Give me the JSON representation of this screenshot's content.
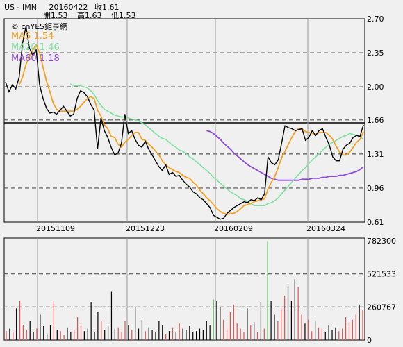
{
  "header": {
    "symbol": "US - IMN",
    "date": "20160422",
    "close": "收1.61",
    "open": "開1.53",
    "high": "高1.63",
    "low": "低1.53"
  },
  "chart_data": [
    {
      "type": "line",
      "watermark": "© cnYES鉅亨網",
      "legend": [
        "MA5 1.54",
        "MA20 1.46",
        "MA60 1.18"
      ],
      "ylim": [
        0.61,
        2.7
      ],
      "yticks": [
        "2.70",
        "2.35",
        "2.00",
        "1.66",
        "1.31",
        "0.96",
        "0.61"
      ],
      "xticks": [
        "20151109",
        "20151223",
        "20160209",
        "20160324"
      ],
      "reference_line": 1.63,
      "colors": {
        "price": "#000000",
        "ma5": "#f5a020",
        "ma20": "#7ee0a0",
        "ma60": "#9048e0"
      },
      "series": [
        {
          "name": "",
          "values": [
            2.05,
            1.95,
            2.02,
            1.98,
            2.1,
            2.45,
            2.62,
            2.4,
            2.32,
            2.38,
            2.02,
            1.88,
            1.78,
            1.73,
            1.74,
            1.72,
            1.76,
            1.8,
            1.75,
            1.7,
            1.72,
            1.88,
            1.96,
            1.94,
            1.9,
            1.82,
            1.76,
            1.36,
            1.68,
            1.55,
            1.48,
            1.38,
            1.3,
            1.32,
            1.42,
            1.72,
            1.52,
            1.55,
            1.46,
            1.4,
            1.38,
            1.44,
            1.36,
            1.3,
            1.24,
            1.18,
            1.14,
            1.2,
            1.1,
            1.12,
            1.08,
            1.09,
            1.04,
            1.0,
            0.97,
            0.92,
            0.9,
            0.86,
            0.84,
            0.8,
            0.76,
            0.68,
            0.66,
            0.64,
            0.65,
            0.7,
            0.73,
            0.76,
            0.78,
            0.8,
            0.82,
            0.81,
            0.84,
            0.83,
            0.86,
            0.84,
            0.9,
            1.28,
            1.22,
            1.2,
            1.25,
            1.42,
            1.6,
            1.58,
            1.57,
            1.55,
            1.56,
            1.57,
            1.45,
            1.48,
            1.55,
            1.5,
            1.55,
            1.57,
            1.48,
            1.4,
            1.28,
            1.24,
            1.24,
            1.36,
            1.4,
            1.42,
            1.48,
            1.5,
            1.49,
            1.61
          ]
        },
        {
          "name": "MA5",
          "values": [
            null,
            null,
            null,
            null,
            2.02,
            2.1,
            2.23,
            2.31,
            2.38,
            2.43,
            2.35,
            2.2,
            2.06,
            1.95,
            1.83,
            1.77,
            1.75,
            1.75,
            1.75,
            1.75,
            1.75,
            1.77,
            1.8,
            1.84,
            1.88,
            1.9,
            1.88,
            1.76,
            1.7,
            1.61,
            1.57,
            1.49,
            1.48,
            1.41,
            1.38,
            1.43,
            1.46,
            1.5,
            1.53,
            1.53,
            1.46,
            1.45,
            1.41,
            1.38,
            1.34,
            1.3,
            1.24,
            1.2,
            1.17,
            1.15,
            1.13,
            1.12,
            1.09,
            1.07,
            1.06,
            1.02,
            0.99,
            0.94,
            0.9,
            0.86,
            0.83,
            0.79,
            0.75,
            0.72,
            0.7,
            0.69,
            0.7,
            0.7,
            0.72,
            0.75,
            0.78,
            0.79,
            0.8,
            0.82,
            0.83,
            0.84,
            0.85,
            0.95,
            1.02,
            1.08,
            1.17,
            1.27,
            1.34,
            1.41,
            1.48,
            1.54,
            1.57,
            1.57,
            1.54,
            1.53,
            1.52,
            1.51,
            1.53,
            1.53,
            1.53,
            1.5,
            1.46,
            1.39,
            1.33,
            1.3,
            1.3,
            1.33,
            1.38,
            1.43,
            1.46,
            1.54
          ]
        },
        {
          "name": "MA20",
          "values": [
            null,
            null,
            null,
            null,
            null,
            null,
            null,
            null,
            null,
            null,
            null,
            null,
            null,
            null,
            null,
            null,
            null,
            null,
            null,
            2.03,
            2.01,
            2.01,
            2.01,
            2.0,
            1.99,
            1.96,
            1.92,
            1.86,
            1.81,
            1.77,
            1.75,
            1.73,
            1.71,
            1.7,
            1.69,
            1.69,
            1.68,
            1.67,
            1.66,
            1.65,
            1.63,
            1.61,
            1.58,
            1.55,
            1.52,
            1.49,
            1.47,
            1.46,
            1.43,
            1.4,
            1.38,
            1.35,
            1.34,
            1.31,
            1.28,
            1.26,
            1.23,
            1.2,
            1.17,
            1.14,
            1.11,
            1.07,
            1.04,
            1.01,
            0.98,
            0.95,
            0.92,
            0.9,
            0.88,
            0.85,
            0.84,
            0.82,
            0.8,
            0.78,
            0.78,
            0.78,
            0.78,
            0.8,
            0.81,
            0.83,
            0.86,
            0.9,
            0.94,
            0.98,
            1.02,
            1.06,
            1.1,
            1.14,
            1.17,
            1.21,
            1.25,
            1.28,
            1.31,
            1.35,
            1.38,
            1.41,
            1.43,
            1.45,
            1.47,
            1.49,
            1.5,
            1.52,
            1.51,
            1.5,
            1.49,
            1.46
          ]
        },
        {
          "name": "MA60",
          "values": [
            null,
            null,
            null,
            null,
            null,
            null,
            null,
            null,
            null,
            null,
            null,
            null,
            null,
            null,
            null,
            null,
            null,
            null,
            null,
            null,
            null,
            null,
            null,
            null,
            null,
            null,
            null,
            null,
            null,
            null,
            null,
            null,
            null,
            null,
            null,
            null,
            null,
            null,
            null,
            null,
            null,
            null,
            null,
            null,
            null,
            null,
            null,
            null,
            null,
            null,
            null,
            null,
            null,
            null,
            null,
            null,
            null,
            null,
            null,
            1.55,
            1.54,
            1.52,
            1.49,
            1.46,
            1.42,
            1.39,
            1.36,
            1.32,
            1.29,
            1.26,
            1.23,
            1.2,
            1.18,
            1.16,
            1.14,
            1.12,
            1.1,
            1.08,
            1.06,
            1.05,
            1.04,
            1.04,
            1.04,
            1.04,
            1.04,
            1.04,
            1.04,
            1.05,
            1.05,
            1.05,
            1.06,
            1.06,
            1.06,
            1.07,
            1.07,
            1.08,
            1.08,
            1.08,
            1.09,
            1.09,
            1.1,
            1.11,
            1.12,
            1.13,
            1.15,
            1.18
          ]
        }
      ]
    },
    {
      "type": "bar",
      "ylim": [
        0,
        782300
      ],
      "yticks": [
        "782300",
        "521533",
        "260767",
        "0"
      ],
      "colors": {
        "up": "#e05050",
        "down": "#000000",
        "mid": "#40a040"
      },
      "series": [
        {
          "name": "",
          "values": [
            70000,
            90000,
            60000,
            250000,
            310000,
            120000,
            80000,
            150000,
            60000,
            90000,
            200000,
            110000,
            50000,
            120000,
            300000,
            80000,
            70000,
            40000,
            100000,
            60000,
            80000,
            180000,
            120000,
            70000,
            90000,
            300000,
            60000,
            220000,
            150000,
            80000,
            110000,
            380000,
            90000,
            100000,
            60000,
            150000,
            120000,
            80000,
            260000,
            90000,
            160000,
            70000,
            100000,
            80000,
            60000,
            150000,
            120000,
            50000,
            70000,
            100000,
            60000,
            130000,
            90000,
            80000,
            110000,
            60000,
            70000,
            90000,
            80000,
            150000,
            120000,
            320000,
            310000,
            260000,
            160000,
            90000,
            220000,
            280000,
            130000,
            90000,
            60000,
            250000,
            120000,
            140000,
            60000,
            300000,
            90000,
            780000,
            310000,
            200000,
            150000,
            250000,
            350000,
            430000,
            310000,
            480000,
            420000,
            200000,
            130000,
            160000,
            70000,
            150000,
            100000,
            90000,
            60000,
            120000,
            80000,
            100000,
            70000,
            90000,
            180000,
            130000,
            160000,
            200000,
            280000,
            240000
          ]
        }
      ]
    }
  ]
}
